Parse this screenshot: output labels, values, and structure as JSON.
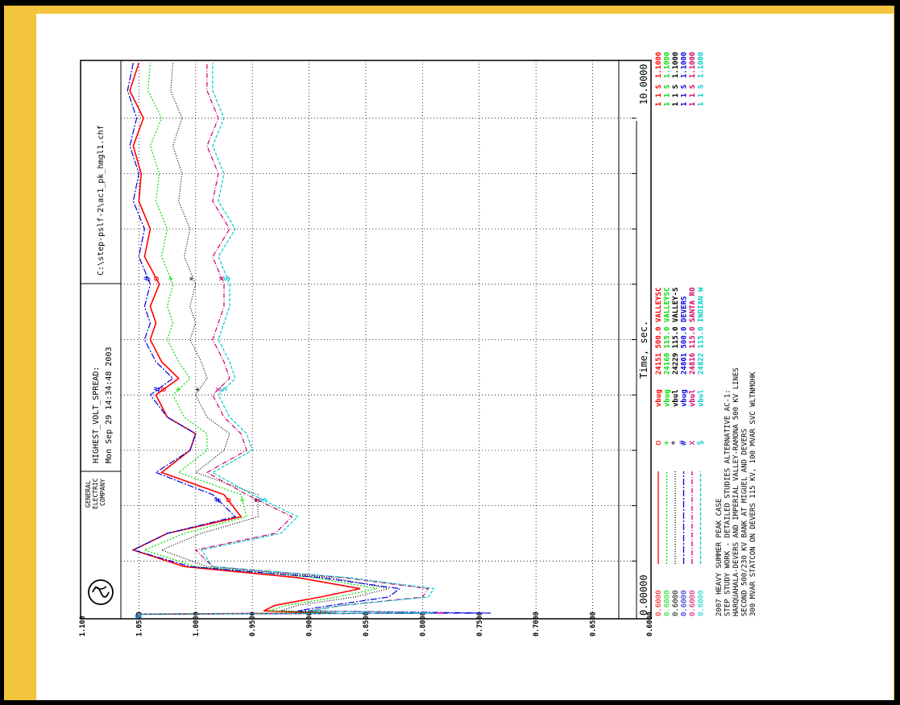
{
  "header": {
    "company_lines": [
      "GENERAL",
      "ELECTRIC",
      "COMPANY"
    ],
    "title": "HIGHEST_VOLT_SPREAD:",
    "date": "Mon Sep 29 14:34:48 2003",
    "file": "C:\\step-pslf-2\\ac1_pk_hmgl1.chf"
  },
  "footer_notes": [
    "2007  HEAVY SUMMER PEAK CASE",
    "STEP STUDY WORK - DETAILED STUDIES ALTERNATIVE AC-1:",
    "HARQUAHALA-DEVERS AND IMPERIAL VALLEY-RAMONA 500 KV LINES",
    "SECOND 500/230 KV BANK AT MIGUEL AND DEVERS",
    "300 MVAR STATCON ON DEVERS 115 KV, 100 MVAR SVC WLTNMOHK"
  ],
  "colors": {
    "red": "#ff0000",
    "green": "#00dd00",
    "black": "#000000",
    "blue": "#0000dd",
    "magenta": "#cc0066",
    "cyan": "#00cccc",
    "frame": "#000000",
    "paper": "#f3c43c"
  },
  "chart_data": {
    "type": "line",
    "xlabel": "Time, sec.",
    "x_start_label": "0.00000",
    "x_end_label": "10.0000",
    "xlim": [
      0,
      10
    ],
    "ylim": [
      0.6,
      1.1
    ],
    "y_ticks": [
      "0.6000",
      "0.6500",
      "0.7000",
      "0.7500",
      "0.8000",
      "0.8500",
      "0.9000",
      "0.9500",
      "1.0000",
      "1.0500",
      "1.100"
    ],
    "grid": true,
    "series": [
      {
        "name": "24151 500.0 VALLEYSC",
        "var": "vbug",
        "marker": "o",
        "min": "0.6000",
        "max": "1.1000",
        "flags": [
          "1",
          "1",
          "S"
        ],
        "color_key": "red",
        "dash": "",
        "x": [
          0,
          0.04,
          0.06,
          0.1,
          0.2,
          0.35,
          0.5,
          0.7,
          0.9,
          1.2,
          1.5,
          1.8,
          2.2,
          2.6,
          3.0,
          3.3,
          3.6,
          4.0,
          4.3,
          4.6,
          5.0,
          5.3,
          5.6,
          6.0,
          6.5,
          7.0,
          7.5,
          8.0,
          8.5,
          9.0,
          9.5,
          10.0
        ],
        "y": [
          1.05,
          1.05,
          0.88,
          0.94,
          0.93,
          0.89,
          0.855,
          0.91,
          1.01,
          1.055,
          1.025,
          0.96,
          0.975,
          1.03,
          1.005,
          1.0,
          1.025,
          1.035,
          1.015,
          1.03,
          1.04,
          1.035,
          1.04,
          1.032,
          1.045,
          1.04,
          1.05,
          1.048,
          1.055,
          1.046,
          1.058,
          1.05
        ]
      },
      {
        "name": "24160 115.0 VALLEYSC",
        "var": "vbug",
        "marker": "+",
        "min": "0.6000",
        "max": "1.1000",
        "flags": [
          "1",
          "1",
          "S"
        ],
        "color_key": "green",
        "dash": "2,2",
        "x": [
          0,
          0.04,
          0.06,
          0.1,
          0.2,
          0.35,
          0.5,
          0.7,
          0.9,
          1.2,
          1.5,
          1.8,
          2.2,
          2.6,
          3.0,
          3.3,
          3.6,
          4.0,
          4.3,
          4.6,
          5.0,
          5.3,
          5.6,
          6.0,
          6.5,
          7.0,
          7.5,
          8.0,
          8.5,
          9.0,
          9.5,
          10.0
        ],
        "y": [
          1.05,
          1.05,
          0.88,
          0.935,
          0.92,
          0.875,
          0.84,
          0.895,
          1.0,
          1.045,
          1.01,
          0.955,
          0.96,
          1.015,
          0.99,
          0.99,
          1.01,
          1.02,
          1.005,
          1.015,
          1.025,
          1.02,
          1.025,
          1.02,
          1.03,
          1.025,
          1.035,
          1.032,
          1.04,
          1.03,
          1.042,
          1.04
        ]
      },
      {
        "name": "24229 115.0 VALLEY-S",
        "var": "vbul",
        "marker": "*",
        "min": "0.6000",
        "max": "1.1000",
        "flags": [
          "1",
          "1",
          "S"
        ],
        "color_key": "black",
        "dash": "1,2",
        "x": [
          0,
          0.04,
          0.06,
          0.1,
          0.2,
          0.35,
          0.5,
          0.7,
          0.9,
          1.2,
          1.5,
          1.8,
          2.2,
          2.6,
          3.0,
          3.3,
          3.6,
          4.0,
          4.3,
          4.6,
          5.0,
          5.3,
          5.6,
          6.0,
          6.5,
          7.0,
          7.5,
          8.0,
          8.5,
          9.0,
          9.5,
          10.0
        ],
        "y": [
          1.05,
          1.05,
          0.875,
          0.925,
          0.91,
          0.86,
          0.83,
          0.88,
          0.99,
          1.03,
          0.995,
          0.945,
          0.945,
          1.0,
          0.975,
          0.97,
          0.99,
          1.0,
          0.99,
          0.995,
          1.005,
          1.0,
          1.005,
          1.0,
          1.01,
          1.005,
          1.015,
          1.012,
          1.02,
          1.012,
          1.022,
          1.02
        ]
      },
      {
        "name": "24801 500.0 DEVERS",
        "var": "vbug",
        "marker": "#",
        "min": "0.6000",
        "max": "1.1000",
        "flags": [
          "1",
          "1",
          "S"
        ],
        "color_key": "blue",
        "dash": "8,2,2,2",
        "x": [
          0,
          0.04,
          0.06,
          0.1,
          0.2,
          0.35,
          0.5,
          0.7,
          0.9,
          1.2,
          1.5,
          1.8,
          2.2,
          2.6,
          3.0,
          3.3,
          3.6,
          4.0,
          4.3,
          4.6,
          5.0,
          5.3,
          5.6,
          6.0,
          6.5,
          7.0,
          7.5,
          8.0,
          8.5,
          9.0,
          9.5,
          10.0
        ],
        "y": [
          1.05,
          1.05,
          0.74,
          0.91,
          0.88,
          0.83,
          0.82,
          0.89,
          1.005,
          1.055,
          1.025,
          0.965,
          0.985,
          1.035,
          1.005,
          1.0,
          1.025,
          1.04,
          1.02,
          1.035,
          1.045,
          1.04,
          1.045,
          1.04,
          1.05,
          1.045,
          1.055,
          1.05,
          1.058,
          1.052,
          1.06,
          1.055
        ]
      },
      {
        "name": "24816 115.0 SANTA RO",
        "var": "vbul",
        "marker": "x",
        "min": "0.6000",
        "max": "1.1000",
        "flags": [
          "1",
          "1",
          "S"
        ],
        "color_key": "magenta",
        "dash": "6,2,1,2",
        "x": [
          0,
          0.04,
          0.06,
          0.1,
          0.2,
          0.35,
          0.5,
          0.7,
          0.9,
          1.2,
          1.5,
          1.8,
          2.2,
          2.6,
          3.0,
          3.3,
          3.6,
          4.0,
          4.3,
          4.6,
          5.0,
          5.3,
          5.6,
          6.0,
          6.5,
          7.0,
          7.5,
          8.0,
          8.5,
          9.0,
          9.5,
          10.0
        ],
        "y": [
          1.05,
          1.05,
          0.78,
          0.9,
          0.87,
          0.8,
          0.795,
          0.87,
          0.985,
          1.0,
          0.93,
          0.915,
          0.955,
          0.99,
          0.955,
          0.96,
          0.975,
          0.985,
          0.97,
          0.975,
          0.985,
          0.98,
          0.975,
          0.975,
          0.985,
          0.97,
          0.985,
          0.98,
          0.99,
          0.98,
          0.99,
          0.99
        ]
      },
      {
        "name": "24822 115.0 INDIAN W",
        "var": "vbul",
        "marker": "$",
        "min": "0.6000",
        "max": "1.1000",
        "flags": [
          "1",
          "1",
          "S"
        ],
        "color_key": "cyan",
        "dash": "4,2",
        "x": [
          0,
          0.04,
          0.06,
          0.1,
          0.2,
          0.35,
          0.5,
          0.7,
          0.9,
          1.2,
          1.5,
          1.8,
          2.2,
          2.6,
          3.0,
          3.3,
          3.6,
          4.0,
          4.3,
          4.6,
          5.0,
          5.3,
          5.6,
          6.0,
          6.5,
          7.0,
          7.5,
          8.0,
          8.5,
          9.0,
          9.5,
          10.0
        ],
        "y": [
          1.05,
          1.05,
          0.79,
          0.9,
          0.87,
          0.795,
          0.79,
          0.865,
          0.985,
          0.995,
          0.925,
          0.91,
          0.95,
          0.985,
          0.95,
          0.955,
          0.97,
          0.98,
          0.965,
          0.97,
          0.98,
          0.975,
          0.97,
          0.97,
          0.98,
          0.965,
          0.98,
          0.975,
          0.985,
          0.975,
          0.985,
          0.985
        ]
      }
    ]
  }
}
